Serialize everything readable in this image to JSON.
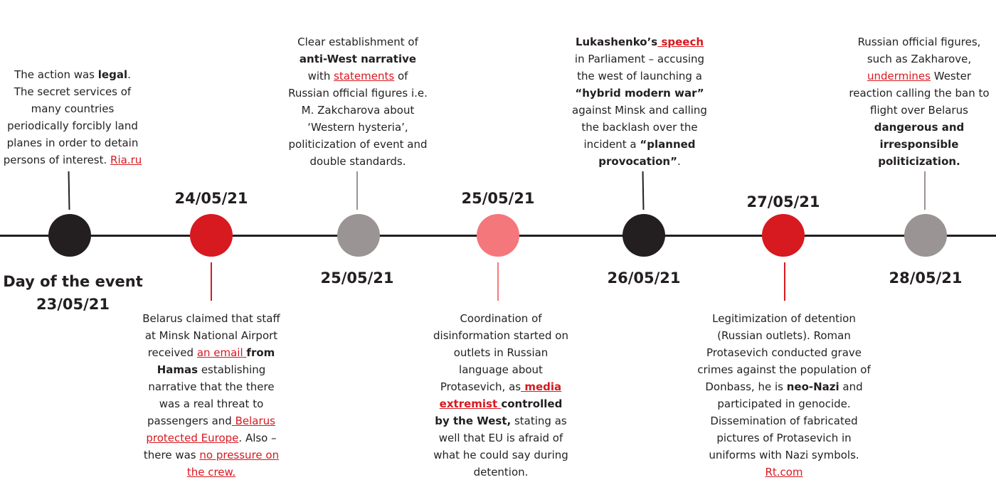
{
  "colors": {
    "dark": "#231f20",
    "red": "#d71920",
    "grey": "#9a9494",
    "pink": "#f4777b",
    "link": "#d71920"
  },
  "start": {
    "title": "Day of the event",
    "date": "23/05/21"
  },
  "events": [
    {
      "id": "e1",
      "date": "",
      "color": "#231f20",
      "caption": [
        {
          "t": "The action was "
        },
        {
          "t": "legal",
          "b": true
        },
        {
          "t": ". The secret services of many countries periodically forcibly land planes in order to detain persons of interest. "
        },
        {
          "t": "Ria.ru",
          "link": true
        }
      ]
    },
    {
      "id": "e2",
      "date": "24/05/21",
      "color": "#d71920",
      "caption": [
        {
          "t": "Belarus claimed that staff at Minsk National Airport received "
        },
        {
          "t": "an email ",
          "link": true
        },
        {
          "t": "from Hamas",
          "b": true
        },
        {
          "t": " establishing narrative that the there was a real threat to passengers and"
        },
        {
          "t": " Belarus protected Europe",
          "link": true
        },
        {
          "t": ". Also – there was "
        },
        {
          "t": "no pressure on the crew.",
          "link": true
        }
      ]
    },
    {
      "id": "e3",
      "date": "25/05/21",
      "color": "#9a9494",
      "caption": [
        {
          "t": "Clear establishment of "
        },
        {
          "t": "anti-West narrative",
          "b": true
        },
        {
          "t": " with "
        },
        {
          "t": "statements",
          "link": true
        },
        {
          "t": " of Russian official figures i.e. M. Zakcharova about ‘Western hysteria’, politicization of event and double standards."
        }
      ]
    },
    {
      "id": "e4",
      "date": "25/05/21",
      "color": "#f4777b",
      "caption": [
        {
          "t": "Coordination of disinformation started on outlets in Russian language about Protasevich, as"
        },
        {
          "t": " media extremist ",
          "link": true,
          "b": true
        },
        {
          "t": "controlled by the West,",
          "b": true
        },
        {
          "t": " stating as well that EU is afraid of what he could say during detention."
        }
      ]
    },
    {
      "id": "e5",
      "date": "26/05/21",
      "color": "#231f20",
      "caption": [
        {
          "t": "Lukashenko’s",
          "b": true
        },
        {
          "t": " speech",
          "link": true,
          "b": true
        },
        {
          "t": " in Parliament –  accusing the west of launching a "
        },
        {
          "t": "“hybrid modern war”",
          "b": true
        },
        {
          "t": " against Minsk and calling the backlash over the incident a "
        },
        {
          "t": "“planned provocation”",
          "b": true
        },
        {
          "t": "."
        }
      ]
    },
    {
      "id": "e6",
      "date": "27/05/21",
      "color": "#d71920",
      "caption": [
        {
          "t": "Legitimization of detention (Russian outlets). Roman Protasevich conducted grave crimes against the population of Donbass, he is "
        },
        {
          "t": "neo-Nazi",
          "b": true
        },
        {
          "t": " and participated in genocide. Dissemination of fabricated pictures of Protasevich in uniforms with Nazi symbols. "
        },
        {
          "t": "Rt.com",
          "link": true
        }
      ]
    },
    {
      "id": "e7",
      "date": "28/05/21",
      "color": "#9a9494",
      "caption": [
        {
          "t": "Russian official figures, such as Zakharove, "
        },
        {
          "t": "undermines",
          "link": true
        },
        {
          "t": " Wester reaction calling the ban to flight over Belarus "
        },
        {
          "t": "dangerous and irresponsible politicization.",
          "b": true
        }
      ]
    }
  ]
}
